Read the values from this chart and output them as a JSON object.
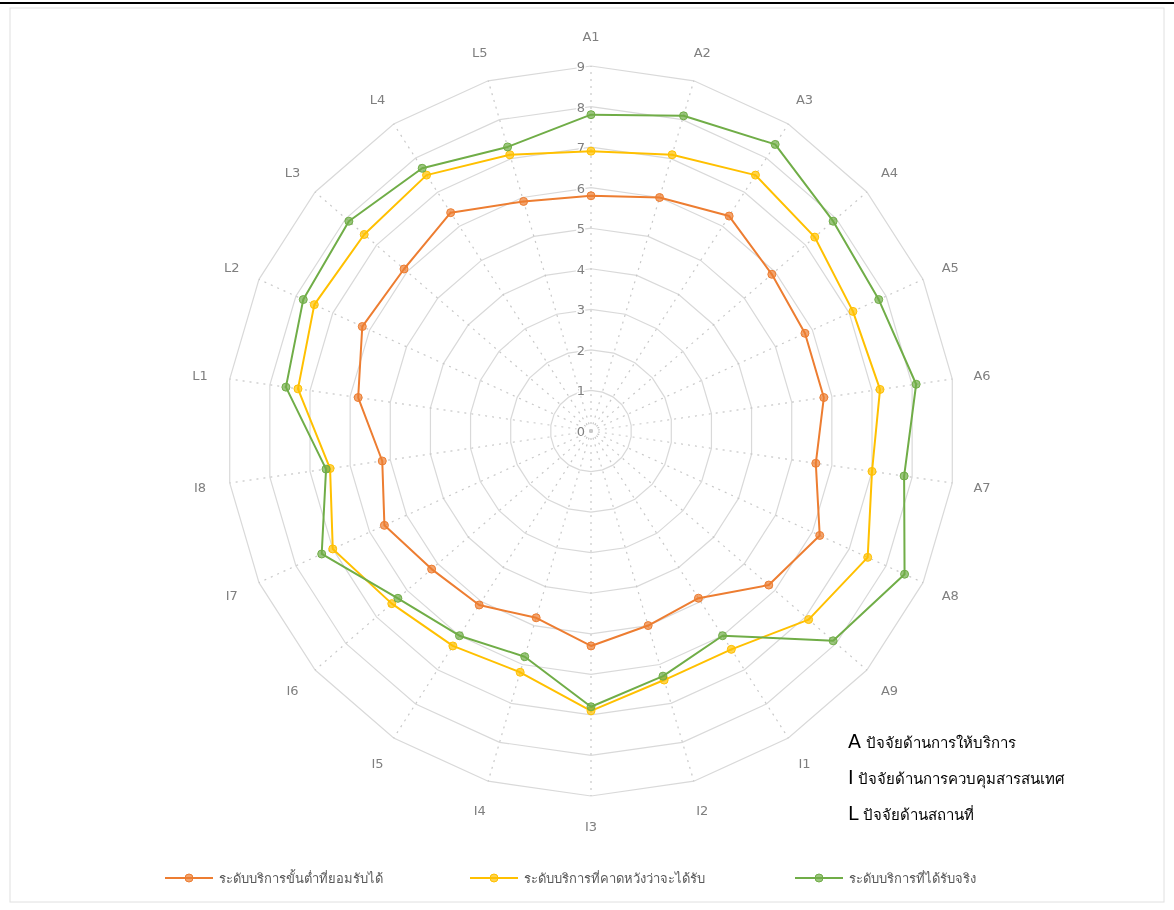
{
  "chart_data": {
    "type": "radar",
    "categories": [
      "A1",
      "A2",
      "A3",
      "A4",
      "A5",
      "A6",
      "A7",
      "A8",
      "A9",
      "I1",
      "I2",
      "I3",
      "I4",
      "I5",
      "I6",
      "I7",
      "I8",
      "L1",
      "L2",
      "L3",
      "L4",
      "L5"
    ],
    "series": [
      {
        "name": "ระดับบริการขั้นต่ำที่ยอมรับได้",
        "color": "#ed7d31",
        "values": [
          5.8,
          6.0,
          6.3,
          5.9,
          5.8,
          5.8,
          5.6,
          6.2,
          5.8,
          4.9,
          5.0,
          5.3,
          4.8,
          5.1,
          5.2,
          5.6,
          5.2,
          5.8,
          6.2,
          6.1,
          6.4,
          5.9
        ]
      },
      {
        "name": "ระดับบริการที่คาดหวังว่าจะได้รับ",
        "color": "#ffc000",
        "values": [
          6.9,
          7.1,
          7.5,
          7.3,
          7.1,
          7.2,
          7.0,
          7.5,
          7.1,
          6.4,
          6.4,
          6.9,
          6.2,
          6.3,
          6.5,
          7.0,
          6.5,
          7.3,
          7.5,
          7.4,
          7.5,
          7.1
        ]
      },
      {
        "name": "ระดับบริการที่ได้รับจริง",
        "color": "#70ad47",
        "values": [
          7.8,
          8.1,
          8.4,
          7.9,
          7.8,
          8.1,
          7.8,
          8.5,
          7.9,
          6.0,
          6.3,
          6.8,
          5.8,
          6.0,
          6.3,
          7.3,
          6.6,
          7.6,
          7.8,
          7.9,
          7.7,
          7.3
        ]
      }
    ],
    "ylim": [
      0,
      9
    ],
    "yticks": [
      0,
      1,
      2,
      3,
      4,
      5,
      6,
      7,
      8,
      9
    ],
    "grid": true,
    "legend": "bottom",
    "marker": "circle",
    "annotations": [
      "A  ปัจจัยด้านการให้บริการ",
      "I  ปัจจัยด้านการควบคุมสารสนเทศ",
      "L  ปัจจัยด้านสถานที่"
    ]
  }
}
